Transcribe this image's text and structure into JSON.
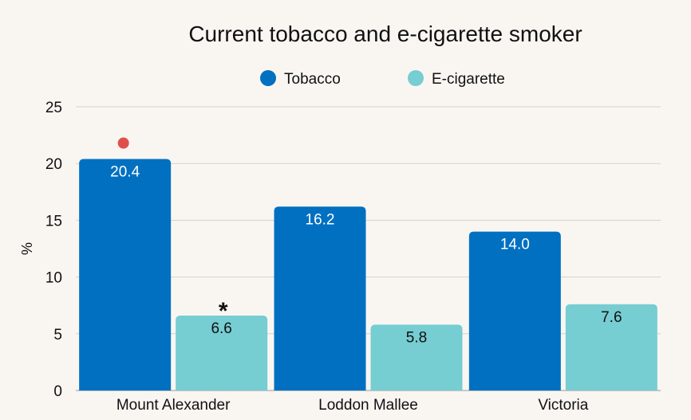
{
  "chart_data": {
    "type": "bar",
    "title": "Current tobacco and e-cigarette smoker",
    "ylabel": "%",
    "xlabel": "",
    "ylim": [
      0,
      25
    ],
    "yticks": [
      0,
      5,
      10,
      15,
      20,
      25
    ],
    "grid": true,
    "legend_position": "top-center",
    "categories": [
      "Mount Alexander",
      "Loddon Mallee",
      "Victoria"
    ],
    "series": [
      {
        "name": "Tobacco",
        "color": "#0170c1",
        "values": [
          20.4,
          16.2,
          14.0
        ],
        "labels": [
          "20.4",
          "16.2",
          "14.0"
        ],
        "label_color": "#ffffff"
      },
      {
        "name": "E-cigarette",
        "color": "#76cdd2",
        "values": [
          6.6,
          5.8,
          7.6
        ],
        "labels": [
          "6.6",
          "5.8",
          "7.6"
        ],
        "label_color": "#111111"
      }
    ],
    "annotations": [
      {
        "type": "dot",
        "series": 0,
        "category": 0,
        "color": "#e0504a"
      },
      {
        "type": "text",
        "text": "*",
        "series": 1,
        "category": 0,
        "color": "#111111"
      }
    ]
  }
}
